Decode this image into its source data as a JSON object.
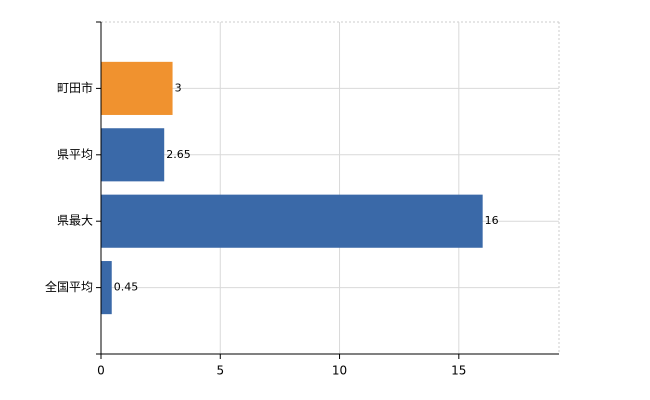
{
  "chart_data": {
    "type": "bar",
    "orientation": "horizontal",
    "categories": [
      "町田市",
      "県平均",
      "県最大",
      "全国平均"
    ],
    "values": [
      3,
      2.65,
      16,
      0.45
    ],
    "colors": [
      "#f0922f",
      "#3a69a8",
      "#3a69a8",
      "#3a69a8"
    ],
    "xlim": [
      0,
      19.2
    ],
    "xticks": [
      0,
      5,
      10,
      15
    ],
    "grid": true
  }
}
